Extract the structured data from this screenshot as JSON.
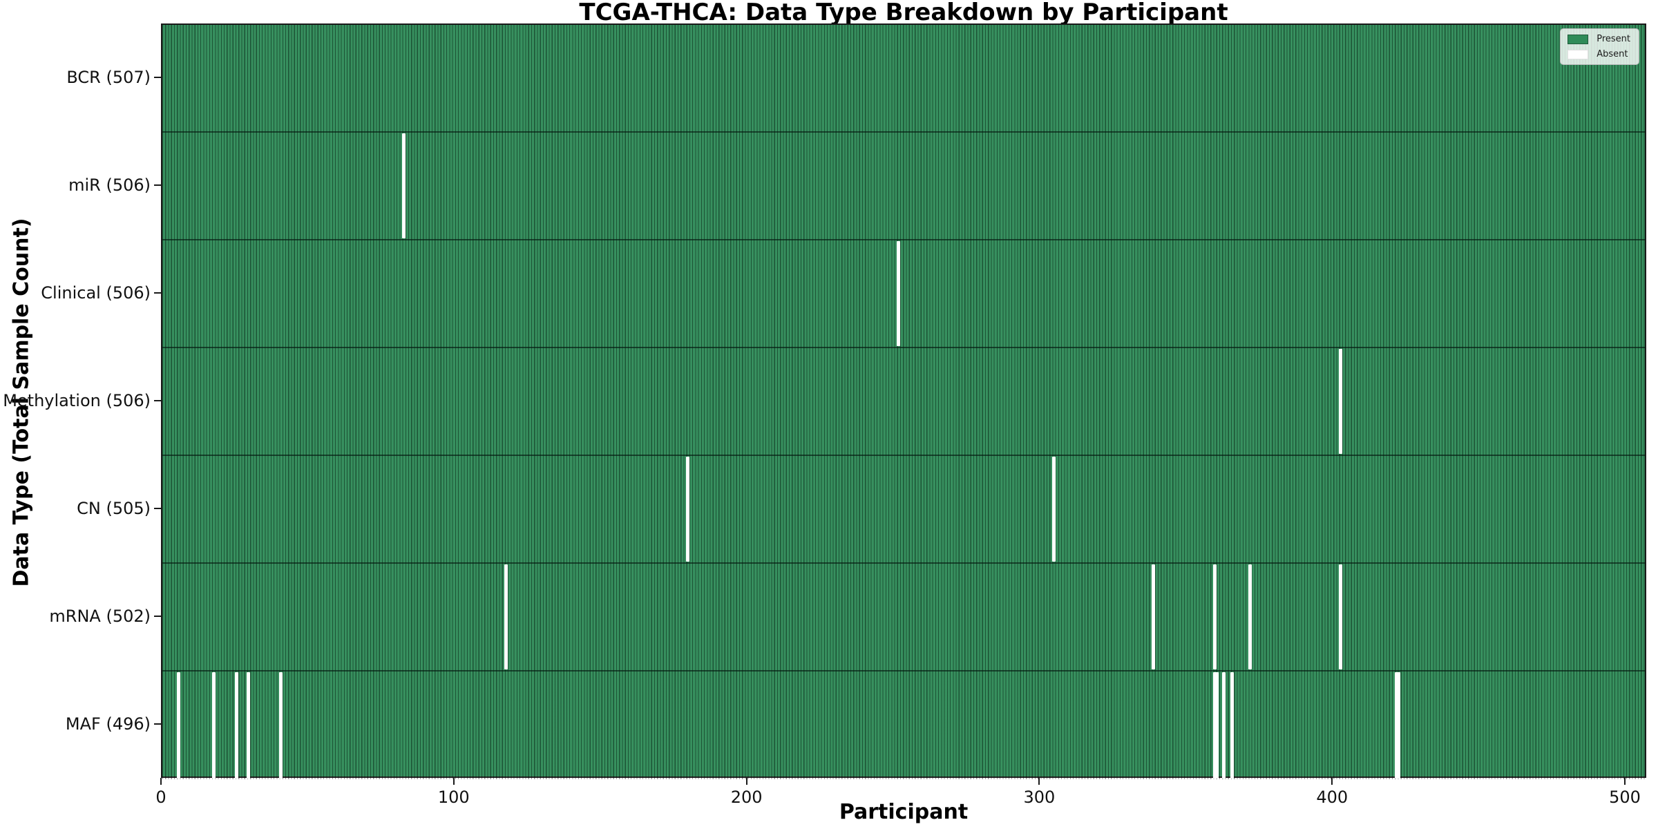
{
  "chart_data": {
    "type": "heatmap",
    "title": "TCGA-THCA: Data Type Breakdown by Participant",
    "xlabel": "Participant",
    "ylabel": "Data Type (Total Sample Count)",
    "x_ticks": [
      0,
      100,
      200,
      300,
      400,
      500
    ],
    "x_range": [
      0,
      507
    ],
    "n_participants": 507,
    "grid": false,
    "legend_position": "upper right",
    "legend": [
      {
        "label": "Present",
        "color": "#2f8b58"
      },
      {
        "label": "Absent",
        "color": "#ffffff"
      }
    ],
    "rows": [
      {
        "label": "BCR (507)",
        "data_type": "BCR",
        "total_samples": 507,
        "absent_participants": []
      },
      {
        "label": "miR (506)",
        "data_type": "miR",
        "total_samples": 506,
        "absent_participants": [
          82
        ]
      },
      {
        "label": "Clinical (506)",
        "data_type": "Clinical",
        "total_samples": 506,
        "absent_participants": [
          251
        ]
      },
      {
        "label": "Methylation (506)",
        "data_type": "Methylation",
        "total_samples": 506,
        "absent_participants": [
          402
        ]
      },
      {
        "label": "CN (505)",
        "data_type": "CN",
        "total_samples": 505,
        "absent_participants": [
          179,
          304
        ]
      },
      {
        "label": "mRNA (502)",
        "data_type": "mRNA",
        "total_samples": 502,
        "absent_participants": [
          117,
          338,
          359,
          371,
          402
        ]
      },
      {
        "label": "MAF (496)",
        "data_type": "MAF",
        "total_samples": 496,
        "absent_participants": [
          5,
          17,
          25,
          29,
          40,
          359,
          360,
          362,
          365,
          421,
          422
        ]
      }
    ]
  },
  "colors": {
    "present": "#2f8b58",
    "absent": "#ffffff",
    "bar_edge": "#1e4d34",
    "spine": "#1a1a1a",
    "legend_border": "#b9b9b9"
  }
}
